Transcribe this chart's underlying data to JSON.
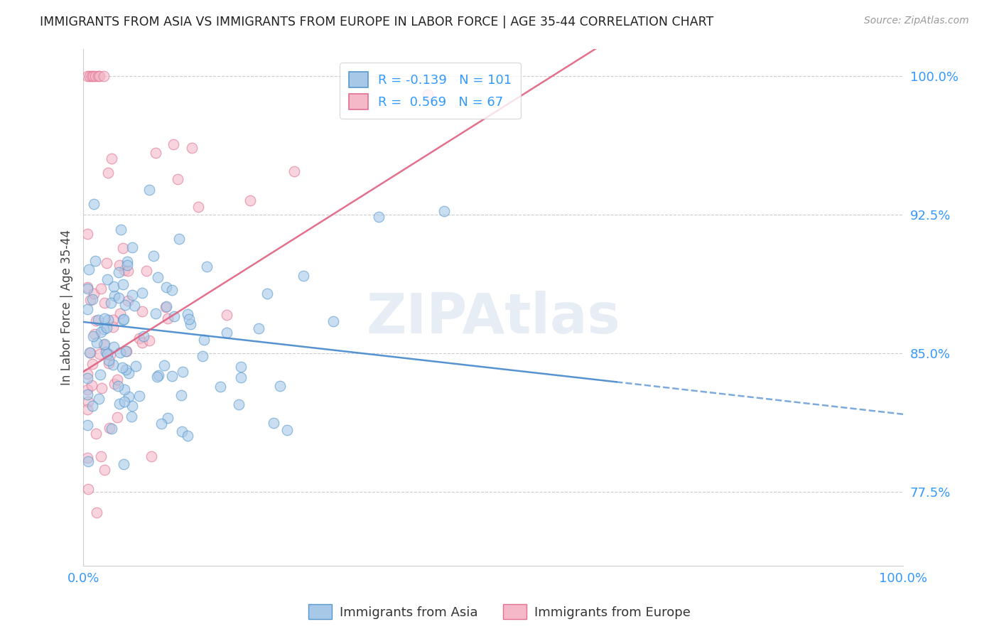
{
  "title": "IMMIGRANTS FROM ASIA VS IMMIGRANTS FROM EUROPE IN LABOR FORCE | AGE 35-44 CORRELATION CHART",
  "source": "Source: ZipAtlas.com",
  "ylabel": "In Labor Force | Age 35-44",
  "xlim": [
    0.0,
    1.0
  ],
  "ylim": [
    0.735,
    1.015
  ],
  "yticks": [
    0.775,
    0.85,
    0.925,
    1.0
  ],
  "ytick_labels": [
    "77.5%",
    "85.0%",
    "92.5%",
    "100.0%"
  ],
  "r_asia": -0.139,
  "n_asia": 101,
  "r_europe": 0.569,
  "n_europe": 67,
  "color_asia_fill": "#a8c8e8",
  "color_asia_edge": "#5599cc",
  "color_europe_fill": "#f4b8c8",
  "color_europe_edge": "#e07090",
  "color_asia_line": "#4488cc",
  "color_europe_line": "#e06080",
  "color_text_blue": "#3399ff",
  "color_watermark": "#c8d8e8",
  "legend_label_asia": "Immigrants from Asia",
  "legend_label_europe": "Immigrants from Europe"
}
